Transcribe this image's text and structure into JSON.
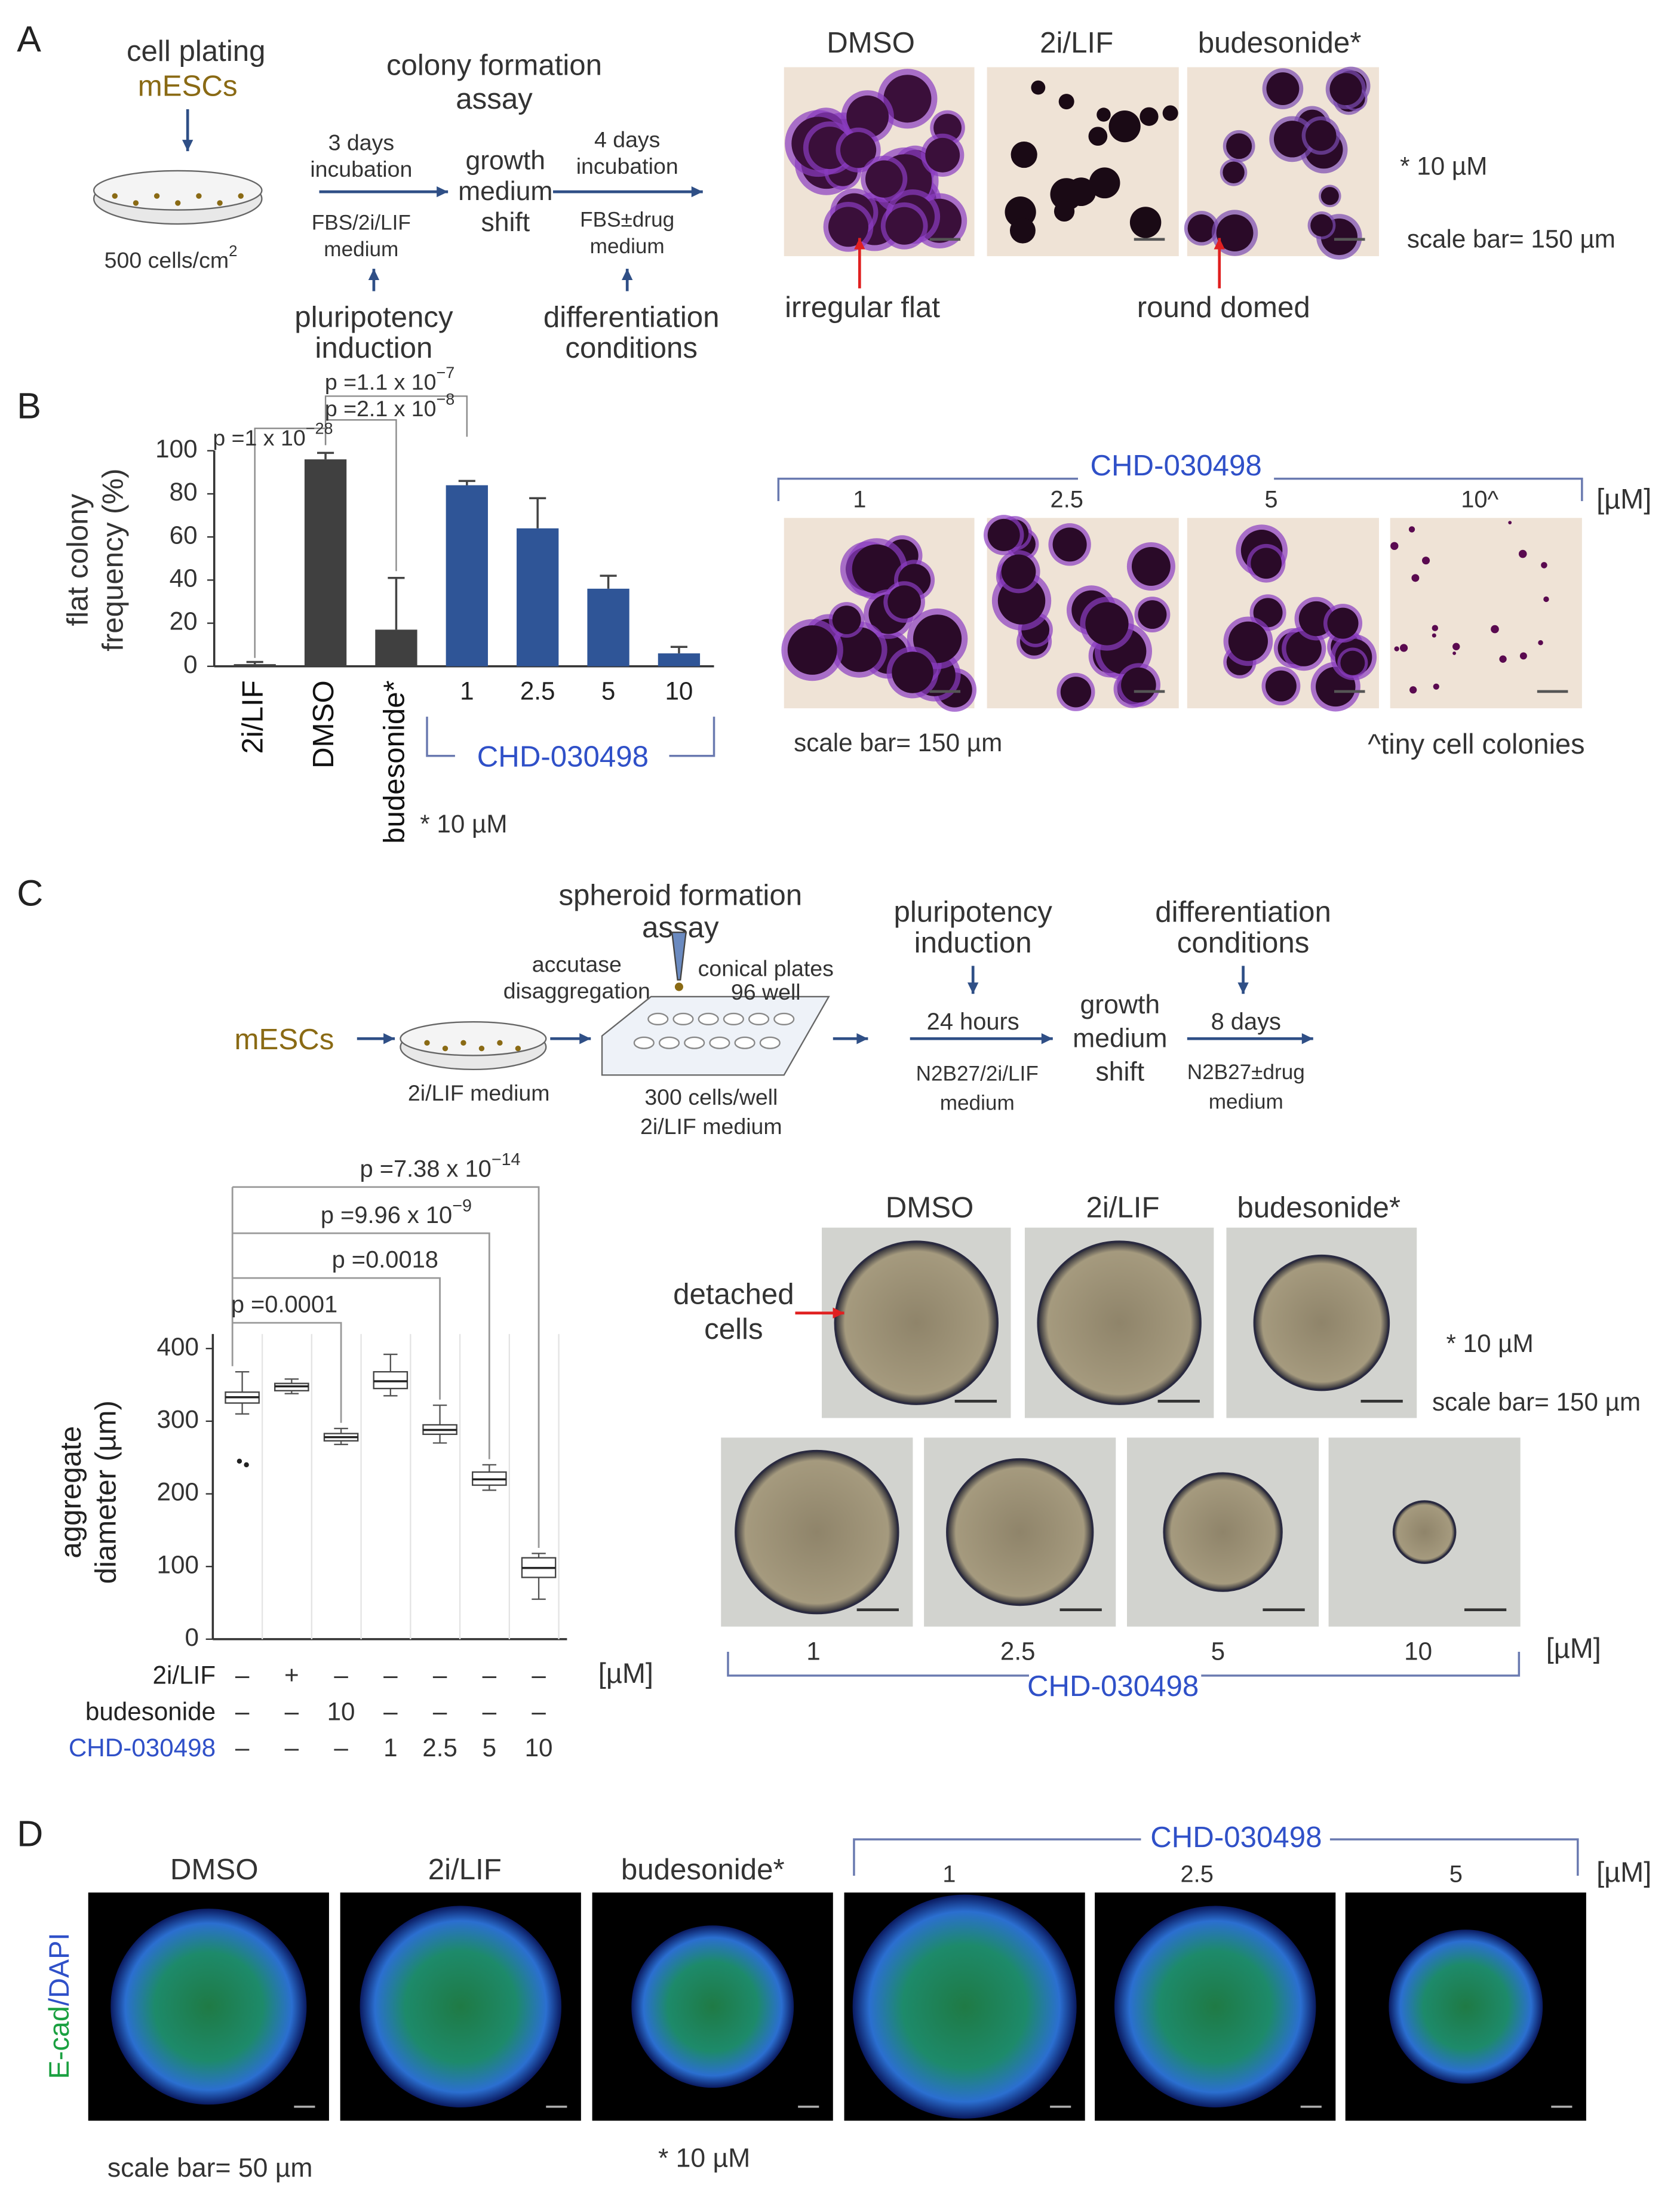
{
  "panel_labels": [
    "A",
    "B",
    "C",
    "D"
  ],
  "panel_a": {
    "step1": [
      "cell plating",
      "mESCs"
    ],
    "plating": "500 cells/cm",
    "plating_sup": "2",
    "title": [
      "colony formation",
      "assay"
    ],
    "incubation1": [
      "3 days",
      "incubation"
    ],
    "medium1": [
      "FBS/2i/LIF",
      "medium"
    ],
    "shift": [
      "growth",
      "medium",
      "shift"
    ],
    "incubation2": [
      "4 days",
      "incubation"
    ],
    "medium2": [
      "FBS±drug",
      "medium"
    ],
    "induction": [
      "pluripotency",
      "induction"
    ],
    "differentiation": [
      "differentiation",
      "conditions"
    ],
    "images": [
      "DMSO",
      "2i/LIF",
      "budesonide*"
    ],
    "arrows": [
      "irregular flat",
      "round domed"
    ],
    "note": "* 10 µM",
    "scale": "scale bar= 150 µm"
  },
  "panel_b": {
    "group": "CHD-030498",
    "concentrations": [
      "1",
      "2.5",
      "5",
      "10^"
    ],
    "unit": "[µM]",
    "scale": "scale bar= 150 µm",
    "note": "^tiny cell colonies",
    "chart_group": "CHD-030498",
    "chart_note": "* 10 µM"
  },
  "panel_c": {
    "title": [
      "spheroid formation",
      "assay"
    ],
    "mescs": "mESCs",
    "accutase": [
      "accutase",
      "disaggregation"
    ],
    "plates": [
      "conical plates",
      "96 well"
    ],
    "medium0": "2i/LIF medium",
    "cells": [
      "300 cells/well",
      "2i/LIF medium"
    ],
    "induction": [
      "pluripotency",
      "induction"
    ],
    "hours": "24 hours",
    "medium1": [
      "N2B27/2i/LIF",
      "medium"
    ],
    "shift": [
      "growth",
      "medium",
      "shift"
    ],
    "differentiation": [
      "differentiation",
      "conditions"
    ],
    "days": "8 days",
    "medium2": [
      "N2B27±drug",
      "medium"
    ],
    "images": [
      "DMSO",
      "2i/LIF",
      "budesonide*"
    ],
    "detached": [
      "detached",
      "cells"
    ],
    "note": "* 10 µM",
    "scale": "scale bar= 150 µm",
    "concentrations": [
      "1",
      "2.5",
      "5",
      "10"
    ],
    "unit": "[µM]",
    "group": "CHD-030498"
  },
  "panel_d": {
    "images": [
      "DMSO",
      "2i/LIF",
      "budesonide*"
    ],
    "group": "CHD-030498",
    "concentrations": [
      "1",
      "2.5",
      "5"
    ],
    "unit": "[µM]",
    "ylabel": [
      "E-cad",
      "/DAPI"
    ],
    "scale": "scale bar= 50 µm",
    "note": "* 10 µM"
  },
  "chart_data": [
    {
      "type": "bar",
      "ylabel": [
        "flat colony",
        "frequency (%)"
      ],
      "categories": [
        "2i/LIF",
        "DMSO",
        "budesonide*",
        "1",
        "2.5",
        "5",
        "10"
      ],
      "values": [
        1,
        96,
        17,
        84,
        64,
        36,
        6
      ],
      "errors": [
        1,
        3,
        24,
        2,
        14,
        6,
        3
      ],
      "colors": [
        "#404040",
        "#404040",
        "#404040",
        "#2f5597",
        "#2f5597",
        "#2f5597",
        "#2f5597"
      ],
      "ylim": [
        0,
        100
      ],
      "yticks": [
        0,
        20,
        40,
        60,
        80,
        100
      ],
      "annotations": [
        {
          "text": "p =1.1 x 10",
          "exponent": "−7"
        },
        {
          "text": "p =2.1 x 10",
          "exponent": "−8"
        },
        {
          "text": "p =1 x 10",
          "exponent": "−28"
        }
      ]
    },
    {
      "type": "box",
      "ylabel": [
        "aggregate",
        "diameter (µm)"
      ],
      "min": [
        310,
        338,
        268,
        335,
        270,
        205,
        55
      ],
      "q1": [
        325,
        342,
        273,
        345,
        282,
        212,
        85
      ],
      "median": [
        333,
        348,
        278,
        355,
        288,
        220,
        98
      ],
      "q3": [
        340,
        352,
        283,
        368,
        295,
        230,
        112
      ],
      "max": [
        368,
        358,
        290,
        392,
        322,
        240,
        118
      ],
      "outliers": [
        [
          245,
          240
        ],
        [],
        [],
        [],
        [],
        [],
        []
      ],
      "ylim": [
        0,
        420
      ],
      "yticks": [
        0,
        100,
        200,
        300,
        400
      ],
      "annotations": [
        {
          "text": "p =0.0001"
        },
        {
          "text": "p =0.0018"
        },
        {
          "text": "p =9.96 x 10",
          "exponent": "−9"
        },
        {
          "text": "p =7.38 x 10",
          "exponent": "−14"
        }
      ],
      "conditions": [
        {
          "name": "2i/LIF",
          "cells": [
            "–",
            "+",
            "–",
            "–",
            "–",
            "–",
            "–"
          ]
        },
        {
          "name": "budesonide",
          "cells": [
            "–",
            "–",
            "10",
            "–",
            "–",
            "–",
            "–"
          ]
        },
        {
          "name": "CHD-030498",
          "cells": [
            "–",
            "–",
            "–",
            "1",
            "2.5",
            "5",
            "10"
          ]
        }
      ],
      "unit": "[µM]"
    }
  ]
}
